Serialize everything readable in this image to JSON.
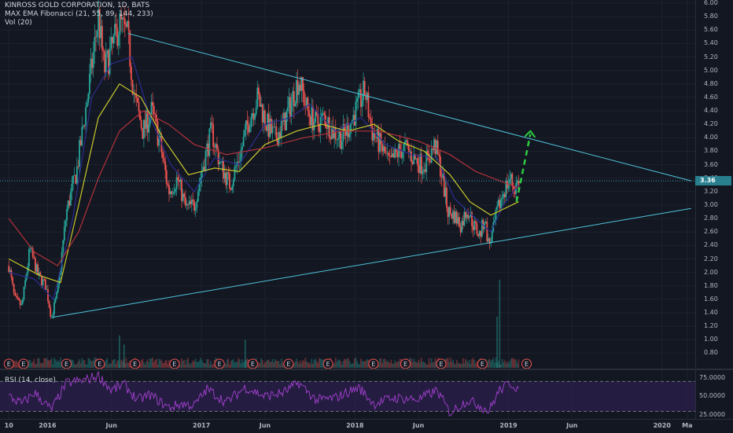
{
  "legend": {
    "symbol": "KINROSS GOLD CORPORATION, 1D, BATS",
    "ema": "MAX EMA Fibonacci (21, 55, 89, 144, 233)",
    "volume": "Vol (20)"
  },
  "rsi_legend": "RSI (14, close)",
  "price_axis": [
    "6.00",
    "5.80",
    "5.60",
    "5.40",
    "5.20",
    "5.00",
    "4.80",
    "4.60",
    "4.40",
    "4.20",
    "4.00",
    "3.80",
    "3.60",
    "3.40",
    "3.20",
    "3.00",
    "2.80",
    "2.60",
    "2.40",
    "2.20",
    "2.00",
    "1.80",
    "1.60",
    "1.40",
    "1.20",
    "1.00",
    "0.80"
  ],
  "rsi_axis": [
    "75.0000",
    "50.0000",
    "25.0000"
  ],
  "last_price": "3.36",
  "time_axis": [
    "10",
    "2016",
    "Jun",
    "2017",
    "Jun",
    "2018",
    "Jun",
    "2019",
    "Jun",
    "2020",
    "Ma"
  ],
  "earnings_marker": "E",
  "colors": {
    "background": "#131722",
    "up": "#26a69a",
    "down": "#ef5350",
    "trendline": "#4fc3d9",
    "ema_fast": "#2b2d8f",
    "ema_mid": "#c9c92b",
    "ema_slow": "#b2323a",
    "projection": "#2ecc40",
    "rsi_line": "#a33fd1",
    "rsi_band": "#2b1f4a"
  },
  "chart_data": {
    "type": "candlestick",
    "title": "KINROSS GOLD CORPORATION, 1D, BATS",
    "ylim": [
      0.7,
      6.0
    ],
    "last_price": 3.36,
    "price_path": [
      [
        "2015-10-01",
        2.1
      ],
      [
        "2015-10-15",
        1.6
      ],
      [
        "2015-11-01",
        1.5
      ],
      [
        "2015-11-20",
        2.35
      ],
      [
        "2015-12-10",
        1.95
      ],
      [
        "2015-12-28",
        1.8
      ],
      [
        "2016-01-10",
        1.33
      ],
      [
        "2016-01-25",
        1.7
      ],
      [
        "2016-02-15",
        2.9
      ],
      [
        "2016-03-10",
        3.5
      ],
      [
        "2016-04-05",
        4.6
      ],
      [
        "2016-05-01",
        5.8
      ],
      [
        "2016-05-15",
        5.0
      ],
      [
        "2016-06-01",
        5.3
      ],
      [
        "2016-06-20",
        5.7
      ],
      [
        "2016-07-10",
        5.5
      ],
      [
        "2016-07-25",
        4.6
      ],
      [
        "2016-08-15",
        4.1
      ],
      [
        "2016-09-05",
        4.4
      ],
      [
        "2016-09-25",
        3.9
      ],
      [
        "2016-10-15",
        3.2
      ],
      [
        "2016-11-05",
        3.4
      ],
      [
        "2016-11-25",
        2.95
      ],
      [
        "2016-12-15",
        3.0
      ],
      [
        "2017-01-05",
        3.6
      ],
      [
        "2017-01-25",
        4.1
      ],
      [
        "2017-02-15",
        3.6
      ],
      [
        "2017-03-10",
        3.3
      ],
      [
        "2017-04-05",
        3.8
      ],
      [
        "2017-04-25",
        4.3
      ],
      [
        "2017-05-15",
        4.6
      ],
      [
        "2017-06-05",
        4.2
      ],
      [
        "2017-06-25",
        4.0
      ],
      [
        "2017-07-15",
        4.2
      ],
      [
        "2017-08-01",
        4.5
      ],
      [
        "2017-08-20",
        4.88
      ],
      [
        "2017-09-10",
        4.4
      ],
      [
        "2017-10-01",
        4.2
      ],
      [
        "2017-10-20",
        4.3
      ],
      [
        "2017-11-10",
        4.1
      ],
      [
        "2017-12-01",
        4.0
      ],
      [
        "2017-12-20",
        4.2
      ],
      [
        "2018-01-10",
        4.5
      ],
      [
        "2018-01-25",
        4.7
      ],
      [
        "2018-02-10",
        4.1
      ],
      [
        "2018-03-01",
        3.9
      ],
      [
        "2018-03-25",
        3.6
      ],
      [
        "2018-04-15",
        3.8
      ],
      [
        "2018-05-01",
        3.85
      ],
      [
        "2018-05-20",
        3.7
      ],
      [
        "2018-06-10",
        3.6
      ],
      [
        "2018-06-25",
        3.7
      ],
      [
        "2018-07-10",
        3.9
      ],
      [
        "2018-07-25",
        3.5
      ],
      [
        "2018-08-10",
        2.9
      ],
      [
        "2018-08-25",
        2.85
      ],
      [
        "2018-09-10",
        2.7
      ],
      [
        "2018-09-25",
        2.95
      ],
      [
        "2018-10-10",
        2.7
      ],
      [
        "2018-10-25",
        2.55
      ],
      [
        "2018-11-05",
        2.8
      ],
      [
        "2018-11-15",
        2.4
      ],
      [
        "2018-11-25",
        2.6
      ],
      [
        "2018-12-05",
        2.9
      ],
      [
        "2018-12-20",
        3.2
      ],
      [
        "2019-01-05",
        3.4
      ],
      [
        "2019-01-15",
        3.25
      ],
      [
        "2019-01-25",
        3.36
      ]
    ],
    "ema_fast": [
      [
        "2015-10-01",
        2.0
      ],
      [
        "2015-12-01",
        1.9
      ],
      [
        "2016-01-15",
        1.6
      ],
      [
        "2016-03-01",
        2.8
      ],
      [
        "2016-04-15",
        4.6
      ],
      [
        "2016-06-01",
        5.1
      ],
      [
        "2016-07-20",
        5.2
      ],
      [
        "2016-09-01",
        4.3
      ],
      [
        "2016-10-20",
        3.6
      ],
      [
        "2016-12-15",
        3.2
      ],
      [
        "2017-02-01",
        3.7
      ],
      [
        "2017-04-01",
        3.6
      ],
      [
        "2017-06-01",
        4.2
      ],
      [
        "2017-08-01",
        4.3
      ],
      [
        "2017-09-15",
        4.5
      ],
      [
        "2017-11-15",
        4.1
      ],
      [
        "2018-01-15",
        4.3
      ],
      [
        "2018-03-15",
        3.9
      ],
      [
        "2018-05-15",
        3.75
      ],
      [
        "2018-07-15",
        3.7
      ],
      [
        "2018-08-25",
        3.1
      ],
      [
        "2018-10-15",
        2.8
      ],
      [
        "2018-11-20",
        2.6
      ],
      [
        "2018-12-20",
        3.0
      ],
      [
        "2019-01-25",
        3.3
      ]
    ],
    "ema_mid": [
      [
        "2015-10-01",
        2.2
      ],
      [
        "2015-12-15",
        1.95
      ],
      [
        "2016-02-01",
        1.85
      ],
      [
        "2016-03-15",
        3.0
      ],
      [
        "2016-05-01",
        4.3
      ],
      [
        "2016-06-20",
        4.8
      ],
      [
        "2016-08-10",
        4.6
      ],
      [
        "2016-10-01",
        4.0
      ],
      [
        "2016-12-01",
        3.45
      ],
      [
        "2017-02-01",
        3.55
      ],
      [
        "2017-04-01",
        3.5
      ],
      [
        "2017-06-01",
        3.9
      ],
      [
        "2017-08-15",
        4.1
      ],
      [
        "2017-10-15",
        4.2
      ],
      [
        "2017-12-15",
        4.1
      ],
      [
        "2018-02-15",
        4.2
      ],
      [
        "2018-04-15",
        3.95
      ],
      [
        "2018-06-15",
        3.8
      ],
      [
        "2018-08-15",
        3.45
      ],
      [
        "2018-10-01",
        3.05
      ],
      [
        "2018-11-20",
        2.85
      ],
      [
        "2019-01-25",
        3.05
      ]
    ],
    "ema_slow": [
      [
        "2015-10-01",
        2.8
      ],
      [
        "2015-12-01",
        2.3
      ],
      [
        "2016-01-25",
        2.1
      ],
      [
        "2016-03-15",
        2.6
      ],
      [
        "2016-05-01",
        3.4
      ],
      [
        "2016-06-20",
        4.1
      ],
      [
        "2016-08-15",
        4.4
      ],
      [
        "2016-10-15",
        4.2
      ],
      [
        "2016-12-15",
        3.9
      ],
      [
        "2017-03-01",
        3.75
      ],
      [
        "2017-06-01",
        3.85
      ],
      [
        "2017-09-01",
        4.0
      ],
      [
        "2017-12-01",
        4.1
      ],
      [
        "2018-03-01",
        4.1
      ],
      [
        "2018-06-01",
        3.95
      ],
      [
        "2018-08-15",
        3.75
      ],
      [
        "2018-10-15",
        3.5
      ],
      [
        "2018-12-15",
        3.35
      ],
      [
        "2019-01-25",
        3.25
      ]
    ],
    "trendlines": [
      {
        "name": "upper",
        "from": [
          "2016-07-10",
          5.55
        ],
        "to": [
          "2020-03-10",
          3.36
        ]
      },
      {
        "name": "lower",
        "from": [
          "2016-01-10",
          1.33
        ],
        "to": [
          "2020-03-10",
          2.95
        ]
      }
    ],
    "projection": {
      "from": [
        "2019-01-20",
        3.05
      ],
      "to": [
        "2019-02-22",
        4.1
      ]
    },
    "earnings_dates": [
      "2015-10-01",
      "2015-11-05",
      "2016-02-15",
      "2016-05-04",
      "2016-07-27",
      "2016-10-29",
      "2017-02-13",
      "2017-05-03",
      "2017-07-27",
      "2017-10-29",
      "2018-02-14",
      "2018-05-01",
      "2018-07-25",
      "2018-10-31",
      "2019-02-13"
    ],
    "volume_spikes": [
      [
        "2018-12-11",
        0.95
      ],
      [
        "2018-12-05",
        0.55
      ],
      [
        "2016-06-20",
        0.35
      ],
      [
        "2017-04-15",
        0.3
      ],
      [
        "2016-07-01",
        0.25
      ]
    ],
    "rsi": {
      "ylim": [
        20,
        85
      ],
      "levels": [
        70,
        30
      ],
      "values": [
        [
          "2015-10-01",
          50
        ],
        [
          "2015-11-01",
          40
        ],
        [
          "2015-12-01",
          55
        ],
        [
          "2016-01-10",
          32
        ],
        [
          "2016-02-15",
          68
        ],
        [
          "2016-04-01",
          72
        ],
        [
          "2016-05-01",
          78
        ],
        [
          "2016-06-01",
          58
        ],
        [
          "2016-07-01",
          66
        ],
        [
          "2016-08-01",
          45
        ],
        [
          "2016-09-01",
          52
        ],
        [
          "2016-10-15",
          35
        ],
        [
          "2016-11-15",
          40
        ],
        [
          "2016-12-15",
          38
        ],
        [
          "2017-01-15",
          60
        ],
        [
          "2017-03-01",
          42
        ],
        [
          "2017-04-15",
          62
        ],
        [
          "2017-06-01",
          50
        ],
        [
          "2017-07-15",
          55
        ],
        [
          "2017-08-20",
          68
        ],
        [
          "2017-10-01",
          45
        ],
        [
          "2017-11-15",
          48
        ],
        [
          "2018-01-10",
          62
        ],
        [
          "2018-02-15",
          40
        ],
        [
          "2018-04-01",
          48
        ],
        [
          "2018-06-01",
          46
        ],
        [
          "2018-07-15",
          58
        ],
        [
          "2018-08-15",
          28
        ],
        [
          "2018-09-25",
          45
        ],
        [
          "2018-10-25",
          38
        ],
        [
          "2018-11-15",
          30
        ],
        [
          "2018-12-10",
          58
        ],
        [
          "2019-01-05",
          68
        ],
        [
          "2019-01-25",
          60
        ]
      ]
    }
  }
}
